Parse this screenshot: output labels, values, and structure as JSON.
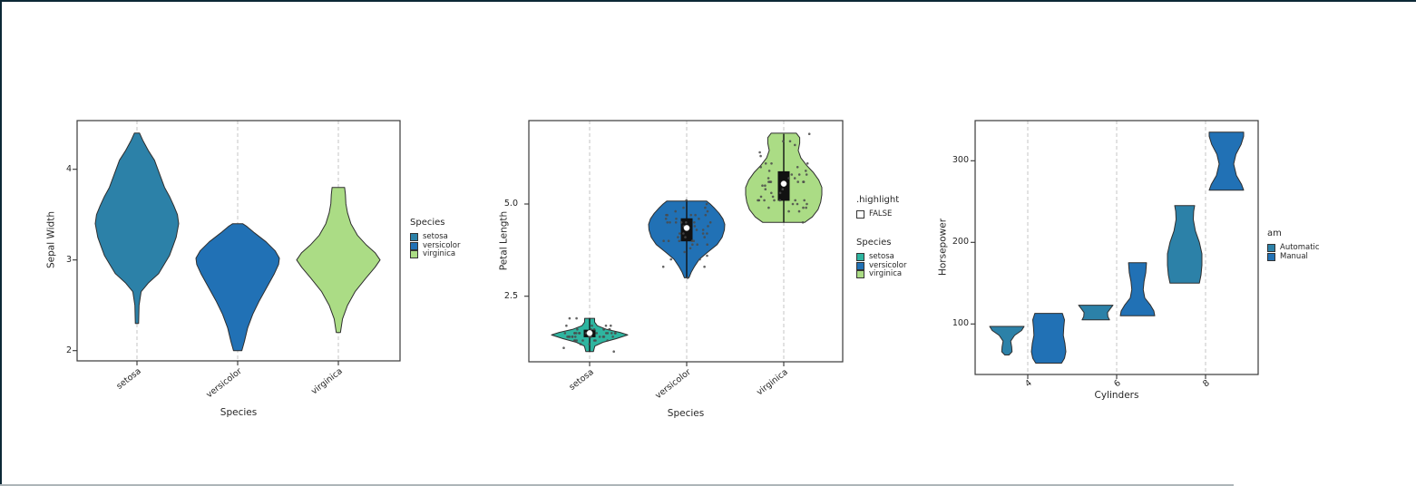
{
  "figure": {
    "background": "#ffffff",
    "frame_color": "#0c2836",
    "panel_border_color": "#3a3a3a",
    "gridline_color": "#c6c6c6",
    "gridline_style": "dashed-vertical",
    "point_color": "#4a4a4a",
    "text_color": "#262626"
  },
  "chart_data": [
    {
      "type": "violin",
      "title": "",
      "xlabel": "Species",
      "ylabel": "Sepal Width",
      "categories": [
        "setosa",
        "versicolor",
        "virginica"
      ],
      "xticks": [
        {
          "label": "setosa"
        },
        {
          "label": "versicolor"
        },
        {
          "label": "virginica"
        }
      ],
      "yticks": [
        {
          "v": 2,
          "label": "2"
        },
        {
          "v": 3,
          "label": "3"
        },
        {
          "v": 4,
          "label": "4"
        }
      ],
      "ylim": [
        1.89,
        4.54
      ],
      "grid": "dashed-vertical",
      "violins": [
        {
          "group": "setosa",
          "cat": 0,
          "color": "#2C81A8",
          "min": 2.3,
          "max": 4.4,
          "peak": 3.4,
          "profile": [
            [
              2.3,
              0.04
            ],
            [
              2.5,
              0.05
            ],
            [
              2.65,
              0.1
            ],
            [
              2.75,
              0.28
            ],
            [
              2.85,
              0.52
            ],
            [
              2.95,
              0.65
            ],
            [
              3.05,
              0.78
            ],
            [
              3.15,
              0.86
            ],
            [
              3.25,
              0.94
            ],
            [
              3.4,
              1.0
            ],
            [
              3.5,
              0.97
            ],
            [
              3.6,
              0.88
            ],
            [
              3.7,
              0.78
            ],
            [
              3.8,
              0.66
            ],
            [
              3.9,
              0.58
            ],
            [
              4.0,
              0.5
            ],
            [
              4.1,
              0.42
            ],
            [
              4.2,
              0.28
            ],
            [
              4.32,
              0.14
            ],
            [
              4.4,
              0.06
            ]
          ]
        },
        {
          "group": "versicolor",
          "cat": 1,
          "color": "#2171B5",
          "min": 2.0,
          "max": 3.4,
          "peak": 3.0,
          "profile": [
            [
              2.0,
              0.1
            ],
            [
              2.1,
              0.16
            ],
            [
              2.25,
              0.24
            ],
            [
              2.4,
              0.36
            ],
            [
              2.55,
              0.52
            ],
            [
              2.7,
              0.7
            ],
            [
              2.85,
              0.88
            ],
            [
              2.95,
              0.98
            ],
            [
              3.02,
              1.0
            ],
            [
              3.1,
              0.9
            ],
            [
              3.2,
              0.68
            ],
            [
              3.3,
              0.4
            ],
            [
              3.37,
              0.22
            ],
            [
              3.4,
              0.12
            ]
          ]
        },
        {
          "group": "virginica",
          "cat": 2,
          "color": "#ABDC85",
          "min": 2.2,
          "max": 3.8,
          "peak": 3.0,
          "profile": [
            [
              2.2,
              0.05
            ],
            [
              2.35,
              0.1
            ],
            [
              2.5,
              0.22
            ],
            [
              2.65,
              0.4
            ],
            [
              2.8,
              0.66
            ],
            [
              2.92,
              0.88
            ],
            [
              3.0,
              1.0
            ],
            [
              3.08,
              0.88
            ],
            [
              3.17,
              0.66
            ],
            [
              3.27,
              0.46
            ],
            [
              3.4,
              0.3
            ],
            [
              3.52,
              0.22
            ],
            [
              3.62,
              0.18
            ],
            [
              3.72,
              0.17
            ],
            [
              3.8,
              0.15
            ]
          ]
        }
      ],
      "legends": [
        {
          "title": "Species",
          "position": "right",
          "entries": [
            {
              "label": "setosa",
              "color": "#2C81A8"
            },
            {
              "label": "versicolor",
              "color": "#2171B5"
            },
            {
              "label": "virginica",
              "color": "#ABDC85"
            }
          ]
        }
      ]
    },
    {
      "type": "violin",
      "title": "",
      "xlabel": "Species",
      "ylabel": "Petal Length",
      "categories": [
        "setosa",
        "versicolor",
        "virginica"
      ],
      "xticks": [
        {
          "label": "setosa"
        },
        {
          "label": "versicolor"
        },
        {
          "label": "virginica"
        }
      ],
      "yticks": [
        {
          "v": 2.5,
          "label": "2.5"
        },
        {
          "v": 5.0,
          "label": "5.0"
        }
      ],
      "ylim": [
        0.72,
        7.26
      ],
      "grid": "dashed-vertical",
      "violins": [
        {
          "group": "setosa",
          "cat": 0,
          "color": "#2EB5A0",
          "min": 1.0,
          "max": 1.9,
          "box": {
            "lo": 1.2,
            "q1": 1.4,
            "med": 1.5,
            "q3": 1.58,
            "hi": 1.7
          },
          "profile": [
            [
              1.0,
              0.1
            ],
            [
              1.08,
              0.12
            ],
            [
              1.15,
              0.14
            ],
            [
              1.25,
              0.35
            ],
            [
              1.35,
              0.7
            ],
            [
              1.45,
              1.0
            ],
            [
              1.52,
              0.8
            ],
            [
              1.6,
              0.45
            ],
            [
              1.7,
              0.2
            ],
            [
              1.8,
              0.13
            ],
            [
              1.9,
              0.13
            ]
          ],
          "points": [
            1.4,
            1.4,
            1.3,
            1.5,
            1.4,
            1.7,
            1.4,
            1.5,
            1.4,
            1.5,
            1.5,
            1.6,
            1.4,
            1.1,
            1.2,
            1.5,
            1.3,
            1.4,
            1.7,
            1.5,
            1.7,
            1.5,
            1.0,
            1.7,
            1.9,
            1.6,
            1.6,
            1.5,
            1.4,
            1.6,
            1.6,
            1.5,
            1.5,
            1.4,
            1.5,
            1.2,
            1.3,
            1.4,
            1.3,
            1.5,
            1.3,
            1.3,
            1.3,
            1.6,
            1.9,
            1.4,
            1.6,
            1.4,
            1.5,
            1.4
          ]
        },
        {
          "group": "versicolor",
          "cat": 1,
          "color": "#2171B5",
          "min": 3.0,
          "max": 5.1,
          "box": {
            "lo": 3.3,
            "q1": 4.0,
            "med": 4.35,
            "q3": 4.6,
            "hi": 5.1
          },
          "profile": [
            [
              3.0,
              0.06
            ],
            [
              3.15,
              0.12
            ],
            [
              3.3,
              0.2
            ],
            [
              3.5,
              0.33
            ],
            [
              3.7,
              0.56
            ],
            [
              3.9,
              0.8
            ],
            [
              4.1,
              0.93
            ],
            [
              4.3,
              0.99
            ],
            [
              4.45,
              1.0
            ],
            [
              4.6,
              0.95
            ],
            [
              4.75,
              0.85
            ],
            [
              4.9,
              0.72
            ],
            [
              5.0,
              0.62
            ],
            [
              5.08,
              0.52
            ]
          ],
          "points": [
            4.7,
            4.5,
            4.9,
            4.0,
            4.6,
            4.5,
            4.7,
            3.3,
            4.6,
            3.9,
            3.5,
            4.2,
            4.0,
            4.7,
            3.6,
            4.4,
            4.5,
            4.1,
            4.5,
            3.9,
            4.8,
            4.0,
            4.9,
            4.7,
            4.3,
            4.4,
            4.8,
            5.0,
            4.5,
            3.5,
            3.8,
            3.7,
            3.9,
            5.1,
            4.5,
            4.5,
            4.7,
            4.4,
            4.1,
            4.0,
            4.4,
            4.6,
            4.0,
            3.3,
            4.2,
            4.2,
            4.2,
            4.3,
            3.0,
            4.1
          ]
        },
        {
          "group": "virginica",
          "cat": 2,
          "color": "#ABDC85",
          "min": 4.5,
          "max": 6.9,
          "box": {
            "lo": 4.5,
            "q1": 5.1,
            "med": 5.55,
            "q3": 5.875,
            "hi": 6.9
          },
          "profile": [
            [
              4.5,
              0.55
            ],
            [
              4.65,
              0.75
            ],
            [
              4.85,
              0.9
            ],
            [
              5.05,
              0.97
            ],
            [
              5.25,
              1.0
            ],
            [
              5.45,
              1.0
            ],
            [
              5.65,
              0.92
            ],
            [
              5.85,
              0.78
            ],
            [
              6.05,
              0.6
            ],
            [
              6.25,
              0.45
            ],
            [
              6.45,
              0.38
            ],
            [
              6.65,
              0.42
            ],
            [
              6.8,
              0.42
            ],
            [
              6.92,
              0.33
            ]
          ],
          "points": [
            6.0,
            5.1,
            5.9,
            5.6,
            5.8,
            6.6,
            4.5,
            6.3,
            5.8,
            6.1,
            5.1,
            5.3,
            5.5,
            5.0,
            5.1,
            5.3,
            5.5,
            6.7,
            6.9,
            5.0,
            5.7,
            4.9,
            6.7,
            4.9,
            5.7,
            6.0,
            4.8,
            4.9,
            5.6,
            5.8,
            6.1,
            6.4,
            5.6,
            5.1,
            5.6,
            6.1,
            5.6,
            5.5,
            4.8,
            5.4,
            5.6,
            5.1,
            5.1,
            5.9,
            5.7,
            5.2,
            5.0,
            5.2,
            5.4,
            5.1
          ]
        }
      ],
      "legends": [
        {
          "title": ".highlight",
          "position": "right",
          "entries": [
            {
              "label": "FALSE",
              "color": "#FFFFFF"
            }
          ]
        },
        {
          "title": "Species",
          "position": "right",
          "entries": [
            {
              "label": "setosa",
              "color": "#2EB5A0"
            },
            {
              "label": "versicolor",
              "color": "#2171B5"
            },
            {
              "label": "virginica",
              "color": "#ABDC85"
            }
          ]
        }
      ]
    },
    {
      "type": "violin",
      "title": "",
      "xlabel": "Cylinders",
      "ylabel": "Horsepower",
      "categories": [
        "4",
        "6",
        "8"
      ],
      "xticks": [
        {
          "label": "4"
        },
        {
          "label": "6"
        },
        {
          "label": "8"
        }
      ],
      "yticks": [
        {
          "v": 100,
          "label": "100"
        },
        {
          "v": 200,
          "label": "200"
        },
        {
          "v": 300,
          "label": "300"
        }
      ],
      "ylim": [
        38,
        349
      ],
      "grid": "dashed-vertical",
      "violins": [
        {
          "group": "cyl4-automatic",
          "am": "Automatic",
          "cyl": 4,
          "cat": 0,
          "side": -1,
          "color": "#2C81A8",
          "values": [
            62,
            95,
            97
          ],
          "profile": [
            [
              62,
              0.12
            ],
            [
              66,
              0.3
            ],
            [
              72,
              0.28
            ],
            [
              79,
              0.22
            ],
            [
              86,
              0.45
            ],
            [
              92,
              0.85
            ],
            [
              97,
              1.0
            ]
          ]
        },
        {
          "group": "cyl4-manual",
          "am": "Manual",
          "cyl": 4,
          "cat": 0,
          "side": 1,
          "color": "#2171B5",
          "values": [
            52,
            65,
            66,
            66,
            91,
            93,
            109,
            113
          ],
          "profile": [
            [
              52,
              0.75
            ],
            [
              58,
              0.92
            ],
            [
              66,
              1.0
            ],
            [
              76,
              0.95
            ],
            [
              86,
              0.85
            ],
            [
              96,
              0.88
            ],
            [
              105,
              0.92
            ],
            [
              113,
              0.8
            ]
          ]
        },
        {
          "group": "cyl6-automatic",
          "am": "Automatic",
          "cyl": 6,
          "cat": 1,
          "side": -1,
          "color": "#2C81A8",
          "values": [
            105,
            110,
            123,
            123
          ],
          "profile": [
            [
              105,
              0.8
            ],
            [
              109,
              0.7
            ],
            [
              114,
              0.68
            ],
            [
              119,
              0.85
            ],
            [
              123,
              1.0
            ]
          ]
        },
        {
          "group": "cyl6-manual",
          "am": "Manual",
          "cyl": 6,
          "cat": 1,
          "side": 1,
          "color": "#2171B5",
          "values": [
            110,
            110,
            175
          ],
          "profile": [
            [
              110,
              1.0
            ],
            [
              116,
              0.95
            ],
            [
              123,
              0.75
            ],
            [
              132,
              0.42
            ],
            [
              142,
              0.33
            ],
            [
              152,
              0.38
            ],
            [
              163,
              0.48
            ],
            [
              175,
              0.52
            ]
          ]
        },
        {
          "group": "cyl8-automatic",
          "am": "Automatic",
          "cyl": 8,
          "cat": 2,
          "side": -1,
          "color": "#2C81A8",
          "values": [
            150,
            150,
            175,
            175,
            180,
            180,
            180,
            205,
            215,
            230,
            245,
            245
          ],
          "profile": [
            [
              150,
              0.85
            ],
            [
              160,
              0.95
            ],
            [
              172,
              1.0
            ],
            [
              186,
              1.0
            ],
            [
              200,
              0.85
            ],
            [
              214,
              0.62
            ],
            [
              228,
              0.5
            ],
            [
              238,
              0.52
            ],
            [
              245,
              0.58
            ]
          ]
        },
        {
          "group": "cyl8-manual",
          "am": "Manual",
          "cyl": 8,
          "cat": 2,
          "side": 1,
          "color": "#2171B5",
          "values": [
            264,
            335
          ],
          "profile": [
            [
              264,
              1.0
            ],
            [
              271,
              0.88
            ],
            [
              282,
              0.58
            ],
            [
              296,
              0.42
            ],
            [
              308,
              0.55
            ],
            [
              320,
              0.85
            ],
            [
              330,
              1.0
            ],
            [
              335,
              1.0
            ]
          ]
        }
      ],
      "legends": [
        {
          "title": "am",
          "position": "right",
          "entries": [
            {
              "label": "Automatic",
              "color": "#2C81A8"
            },
            {
              "label": "Manual",
              "color": "#2171B5"
            }
          ]
        }
      ]
    }
  ]
}
